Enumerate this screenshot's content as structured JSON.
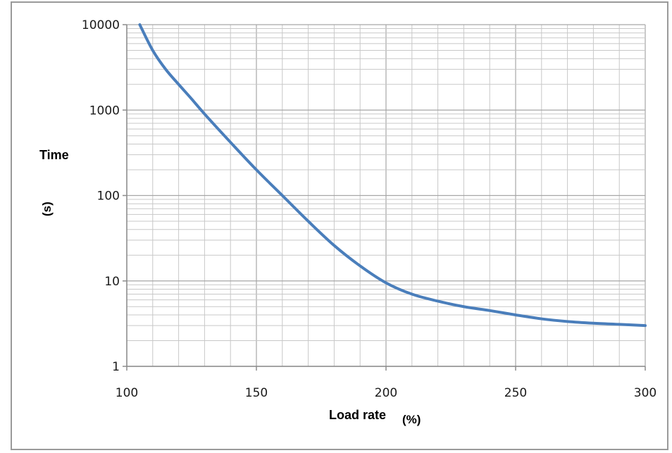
{
  "chart_data": {
    "type": "line",
    "title": "",
    "xlabel": {
      "text": "Load rate",
      "unit": "(%)"
    },
    "ylabel": {
      "text": "Time",
      "unit": "(s)"
    },
    "xlim": [
      100,
      300
    ],
    "ylim": [
      1,
      10000
    ],
    "yscale": "log",
    "grid": true,
    "legend": "none",
    "x_ticks": [
      "100",
      "150",
      "200",
      "250",
      "300"
    ],
    "y_ticks": [
      "1",
      "10",
      "100",
      "1000",
      "10000"
    ],
    "series": [
      {
        "color": "#4a7ebb",
        "x": [
          105,
          110,
          115,
          120,
          125,
          130,
          140,
          150,
          160,
          170,
          180,
          190,
          200,
          210,
          220,
          230,
          240,
          250,
          260,
          270,
          280,
          290,
          300
        ],
        "y": [
          10000,
          5000,
          3000,
          2000,
          1350,
          900,
          420,
          200,
          100,
          50,
          26,
          15,
          9.5,
          7,
          5.8,
          5,
          4.5,
          4,
          3.6,
          3.35,
          3.2,
          3.1,
          3
        ]
      }
    ]
  }
}
